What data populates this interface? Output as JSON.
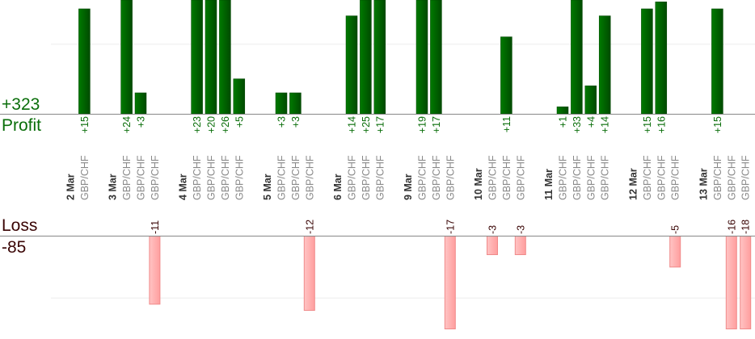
{
  "chart_data": {
    "type": "bar",
    "profit_label": "Profit",
    "profit_total": "+323",
    "loss_label": "Loss",
    "loss_total": "-85",
    "instrument": "GBP/CHF",
    "grid": true,
    "gridline_value": 10,
    "colors": {
      "profit": "#006400",
      "loss": "#ffb0b0",
      "loss_border": "#f08a8a",
      "profit_text": "#0a6e0a",
      "loss_text": "#3a0505",
      "date_text": "#333333",
      "instrument_text": "#888888"
    },
    "days": [
      {
        "date": "2 Mar",
        "trades": [
          15
        ]
      },
      {
        "date": "3 Mar",
        "trades": [
          24,
          3,
          -11
        ]
      },
      {
        "date": "4 Mar",
        "trades": [
          23,
          20,
          26,
          5
        ]
      },
      {
        "date": "5 Mar",
        "trades": [
          3,
          3,
          -12
        ]
      },
      {
        "date": "6 Mar",
        "trades": [
          14,
          25,
          17
        ]
      },
      {
        "date": "9 Mar",
        "trades": [
          19,
          17,
          -17
        ]
      },
      {
        "date": "10 Mar",
        "trades": [
          -3,
          11,
          -3
        ]
      },
      {
        "date": "11 Mar",
        "trades": [
          1,
          33,
          4,
          14
        ]
      },
      {
        "date": "12 Mar",
        "trades": [
          15,
          16,
          -5
        ]
      },
      {
        "date": "13 Mar",
        "trades": [
          15,
          -16,
          -18
        ]
      }
    ]
  }
}
